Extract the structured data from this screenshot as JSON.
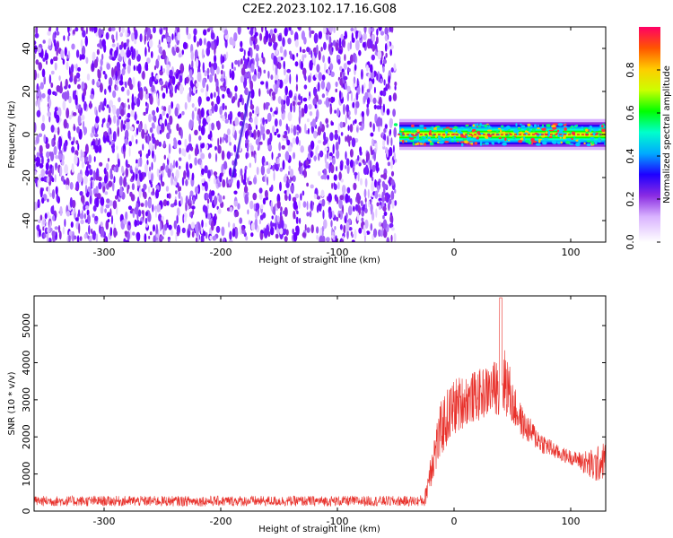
{
  "figure": {
    "title": "C2E2.2023.102.17.16.G08"
  },
  "chart_data": [
    {
      "type": "heatmap",
      "xlabel": "Height of straight line (km)",
      "ylabel": "Frequency (Hz)",
      "xlim": [
        -360,
        130
      ],
      "ylim": [
        -50,
        50
      ],
      "xticks": [
        -300,
        -200,
        -100,
        0,
        100
      ],
      "yticks": [
        -40,
        -20,
        0,
        20,
        40
      ],
      "colorbar": {
        "label": "Normalized spectral amplitude",
        "range": [
          0.0,
          1.0
        ],
        "ticks": [
          0.0,
          0.2,
          0.4,
          0.6,
          0.8
        ],
        "colormap": [
          "#ffffff",
          "#d9b3ff",
          "#8a2be2",
          "#1e00ff",
          "#00aaff",
          "#00ffcc",
          "#00ff00",
          "#ccff00",
          "#ffcc00",
          "#ff5500",
          "#ff0066"
        ]
      },
      "regions": [
        {
          "x_range": [
            -360,
            -50
          ],
          "frequency_range": [
            -50,
            50
          ],
          "description_amplitude": [
            0.0,
            0.2
          ]
        },
        {
          "x_range": [
            -50,
            130
          ],
          "signal_frequency": 0,
          "frequency_width": 6,
          "peak_amplitude": 0.95
        }
      ],
      "streak": {
        "x": [
          -190,
          -175
        ],
        "frequency": [
          -20,
          20
        ],
        "amplitude": 0.3
      }
    },
    {
      "type": "line",
      "xlabel": "Height of straight line (km)",
      "ylabel": "SNR (10 * v/v)",
      "xlim": [
        -360,
        130
      ],
      "ylim": [
        0,
        5800
      ],
      "xticks": [
        -300,
        -200,
        -100,
        0,
        100
      ],
      "yticks": [
        0,
        1000,
        2000,
        3000,
        4000,
        5000
      ],
      "series": [
        {
          "color": "#e8302a",
          "envelope_x": [
            -360,
            -30,
            -25,
            -20,
            -10,
            0,
            10,
            20,
            30,
            40,
            45,
            50,
            60,
            75,
            90,
            105,
            120,
            130
          ],
          "envelope_mean": [
            270,
            270,
            300,
            1200,
            2300,
            2800,
            3000,
            3100,
            3250,
            3400,
            3500,
            2900,
            2300,
            1850,
            1550,
            1400,
            1200,
            1400
          ],
          "envelope_spread": [
            140,
            140,
            200,
            600,
            800,
            800,
            700,
            700,
            700,
            800,
            1000,
            600,
            400,
            300,
            200,
            200,
            500,
            500
          ],
          "peak": {
            "x": 40,
            "y": 5750
          }
        }
      ]
    }
  ]
}
